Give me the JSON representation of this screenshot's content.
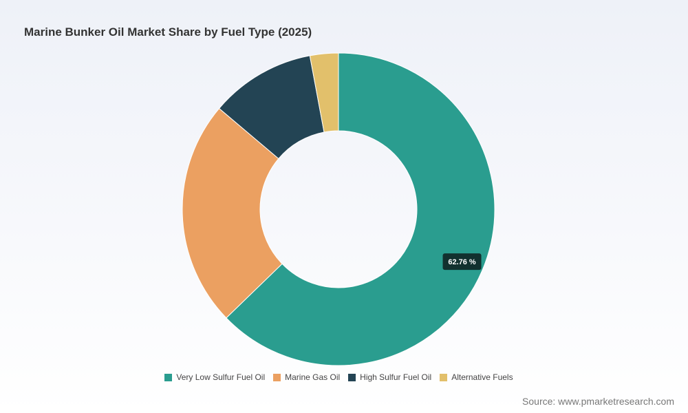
{
  "chart_data": {
    "type": "donut",
    "title": "Marine Bunker Oil Market Share by Fuel Type (2025)",
    "categories": [
      "Very Low Sulfur Fuel Oil",
      "Marine Gas Oil",
      "High Sulfur Fuel Oil",
      "Alternative Fuels"
    ],
    "values": [
      62.76,
      23.4,
      10.9,
      2.94
    ],
    "value_labels": [
      "62.76 %",
      null,
      null,
      null
    ],
    "colors": [
      "#2a9d8f",
      "#eba061",
      "#234454",
      "#e2c06b"
    ],
    "source": "Source: www.pmarketresearch.com"
  }
}
